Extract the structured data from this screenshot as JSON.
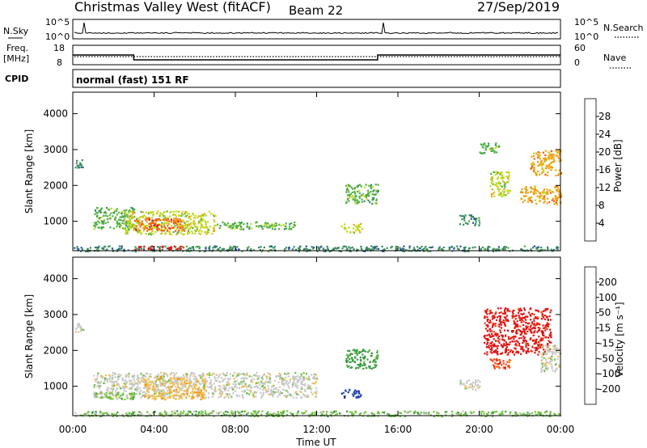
{
  "header": {
    "site": "Christmas Valley West (fitACF)",
    "beam": "Beam 22",
    "date": "27/Sep/2019"
  },
  "strip_labels": {
    "nsky": "N.Sky",
    "nsky_ticks": [
      "10^5",
      "10^0"
    ],
    "nsearch": "N.Search",
    "nsearch_ticks": [
      "10^5",
      "10^0"
    ],
    "freq_line1": "Freq.",
    "freq_line2": "[MHz]",
    "freq_ticks": [
      "18",
      "8"
    ],
    "nave": "Nave",
    "nave_ticks": [
      "60",
      "0"
    ],
    "cpid": "CPID",
    "cpid_value": "normal (fast) 151 RF"
  },
  "chart_data": [
    {
      "type": "heatmap",
      "name": "power-panel",
      "ylabel": "Slant Range [km]",
      "yticks": [
        "1000",
        "2000",
        "3000",
        "4000"
      ],
      "ylim": [
        180,
        4600
      ],
      "colorbar_label": "Power [dB]",
      "colorbar_ticks": [
        "4",
        "8",
        "12",
        "16",
        "20",
        "24",
        "28"
      ],
      "colors": [
        "#0000ee",
        "#2a4fa8",
        "#3a8a62",
        "#50b040",
        "#c0d820",
        "#f0a010",
        "#f06010",
        "#e01010"
      ],
      "regions": [
        {
          "t0": 0.1,
          "t1": 0.5,
          "r0": 2500,
          "r1": 2800,
          "level": 2
        },
        {
          "t0": 1.0,
          "t1": 3.0,
          "r0": 800,
          "r1": 1400,
          "level": 3
        },
        {
          "t0": 2.5,
          "t1": 7.0,
          "r0": 650,
          "r1": 1300,
          "level": 4
        },
        {
          "t0": 3.0,
          "t1": 5.5,
          "r0": 750,
          "r1": 1100,
          "level": 6
        },
        {
          "t0": 7.0,
          "t1": 11.0,
          "r0": 800,
          "r1": 1000,
          "level": 3
        },
        {
          "t0": 13.2,
          "t1": 14.2,
          "r0": 700,
          "r1": 950,
          "level": 4
        },
        {
          "t0": 13.4,
          "t1": 15.0,
          "r0": 1500,
          "r1": 2050,
          "level": 3
        },
        {
          "t0": 19.0,
          "t1": 20.0,
          "r0": 900,
          "r1": 1200,
          "level": 2
        },
        {
          "t0": 20.5,
          "t1": 21.5,
          "r0": 1700,
          "r1": 2400,
          "level": 4
        },
        {
          "t0": 22.0,
          "t1": 24.0,
          "r0": 1500,
          "r1": 2000,
          "level": 5
        },
        {
          "t0": 22.5,
          "t1": 24.0,
          "r0": 2300,
          "r1": 3000,
          "level": 5
        },
        {
          "t0": 20.0,
          "t1": 21.0,
          "r0": 2900,
          "r1": 3200,
          "level": 3
        },
        {
          "t0": 0.0,
          "t1": 24.0,
          "r0": 180,
          "r1": 330,
          "level": 2
        },
        {
          "t0": 3.0,
          "t1": 5.5,
          "r0": 220,
          "r1": 330,
          "level": 7
        }
      ]
    },
    {
      "type": "heatmap",
      "name": "velocity-panel",
      "ylabel": "Slant Range [km]",
      "yticks": [
        "1000",
        "2000",
        "3000",
        "4000"
      ],
      "ylim": [
        180,
        4600
      ],
      "colorbar_label": "Velocity [m s⁻¹]",
      "colorbar_ticks": [
        "-200",
        "-100",
        "-50",
        "-15",
        "15",
        "50",
        "100",
        "200"
      ],
      "colors": [
        "#e01010",
        "#f04010",
        "#f09010",
        "#f0c050",
        "#c8c8c8",
        "#70c040",
        "#3a9a40",
        "#3a6a8a",
        "#2040b0"
      ],
      "regions": [
        {
          "t0": 0.1,
          "t1": 0.5,
          "r0": 2500,
          "r1": 2800,
          "level": 4
        },
        {
          "t0": 1.0,
          "t1": 12.0,
          "r0": 700,
          "r1": 1400,
          "level": 4
        },
        {
          "t0": 3.5,
          "t1": 6.5,
          "r0": 650,
          "r1": 1300,
          "level": 3
        },
        {
          "t0": 1.0,
          "t1": 3.0,
          "r0": 650,
          "r1": 850,
          "level": 5
        },
        {
          "t0": 13.2,
          "t1": 14.2,
          "r0": 700,
          "r1": 950,
          "level": 8
        },
        {
          "t0": 13.4,
          "t1": 15.0,
          "r0": 1500,
          "r1": 2050,
          "level": 6
        },
        {
          "t0": 20.2,
          "t1": 23.5,
          "r0": 1900,
          "r1": 3200,
          "level": 0
        },
        {
          "t0": 20.5,
          "t1": 21.5,
          "r0": 1500,
          "r1": 1800,
          "level": 1
        },
        {
          "t0": 23.0,
          "t1": 24.0,
          "r0": 1400,
          "r1": 2200,
          "level": 4
        },
        {
          "t0": 19.0,
          "t1": 20.0,
          "r0": 900,
          "r1": 1200,
          "level": 4
        },
        {
          "t0": 0.0,
          "t1": 24.0,
          "r0": 180,
          "r1": 330,
          "level": 5
        }
      ]
    }
  ],
  "xaxis": {
    "label": "Time UT",
    "ticks": [
      "00:00",
      "04:00",
      "08:00",
      "12:00",
      "16:00",
      "20:00",
      "00:00"
    ],
    "xlim": [
      0,
      24
    ]
  },
  "freq_line": [
    {
      "t0": 0.0,
      "t1": 3.0,
      "mhz": 13.0
    },
    {
      "t0": 3.0,
      "t1": 15.0,
      "mhz": 10.5
    },
    {
      "t0": 15.0,
      "t1": 24.0,
      "mhz": 13.0
    }
  ]
}
